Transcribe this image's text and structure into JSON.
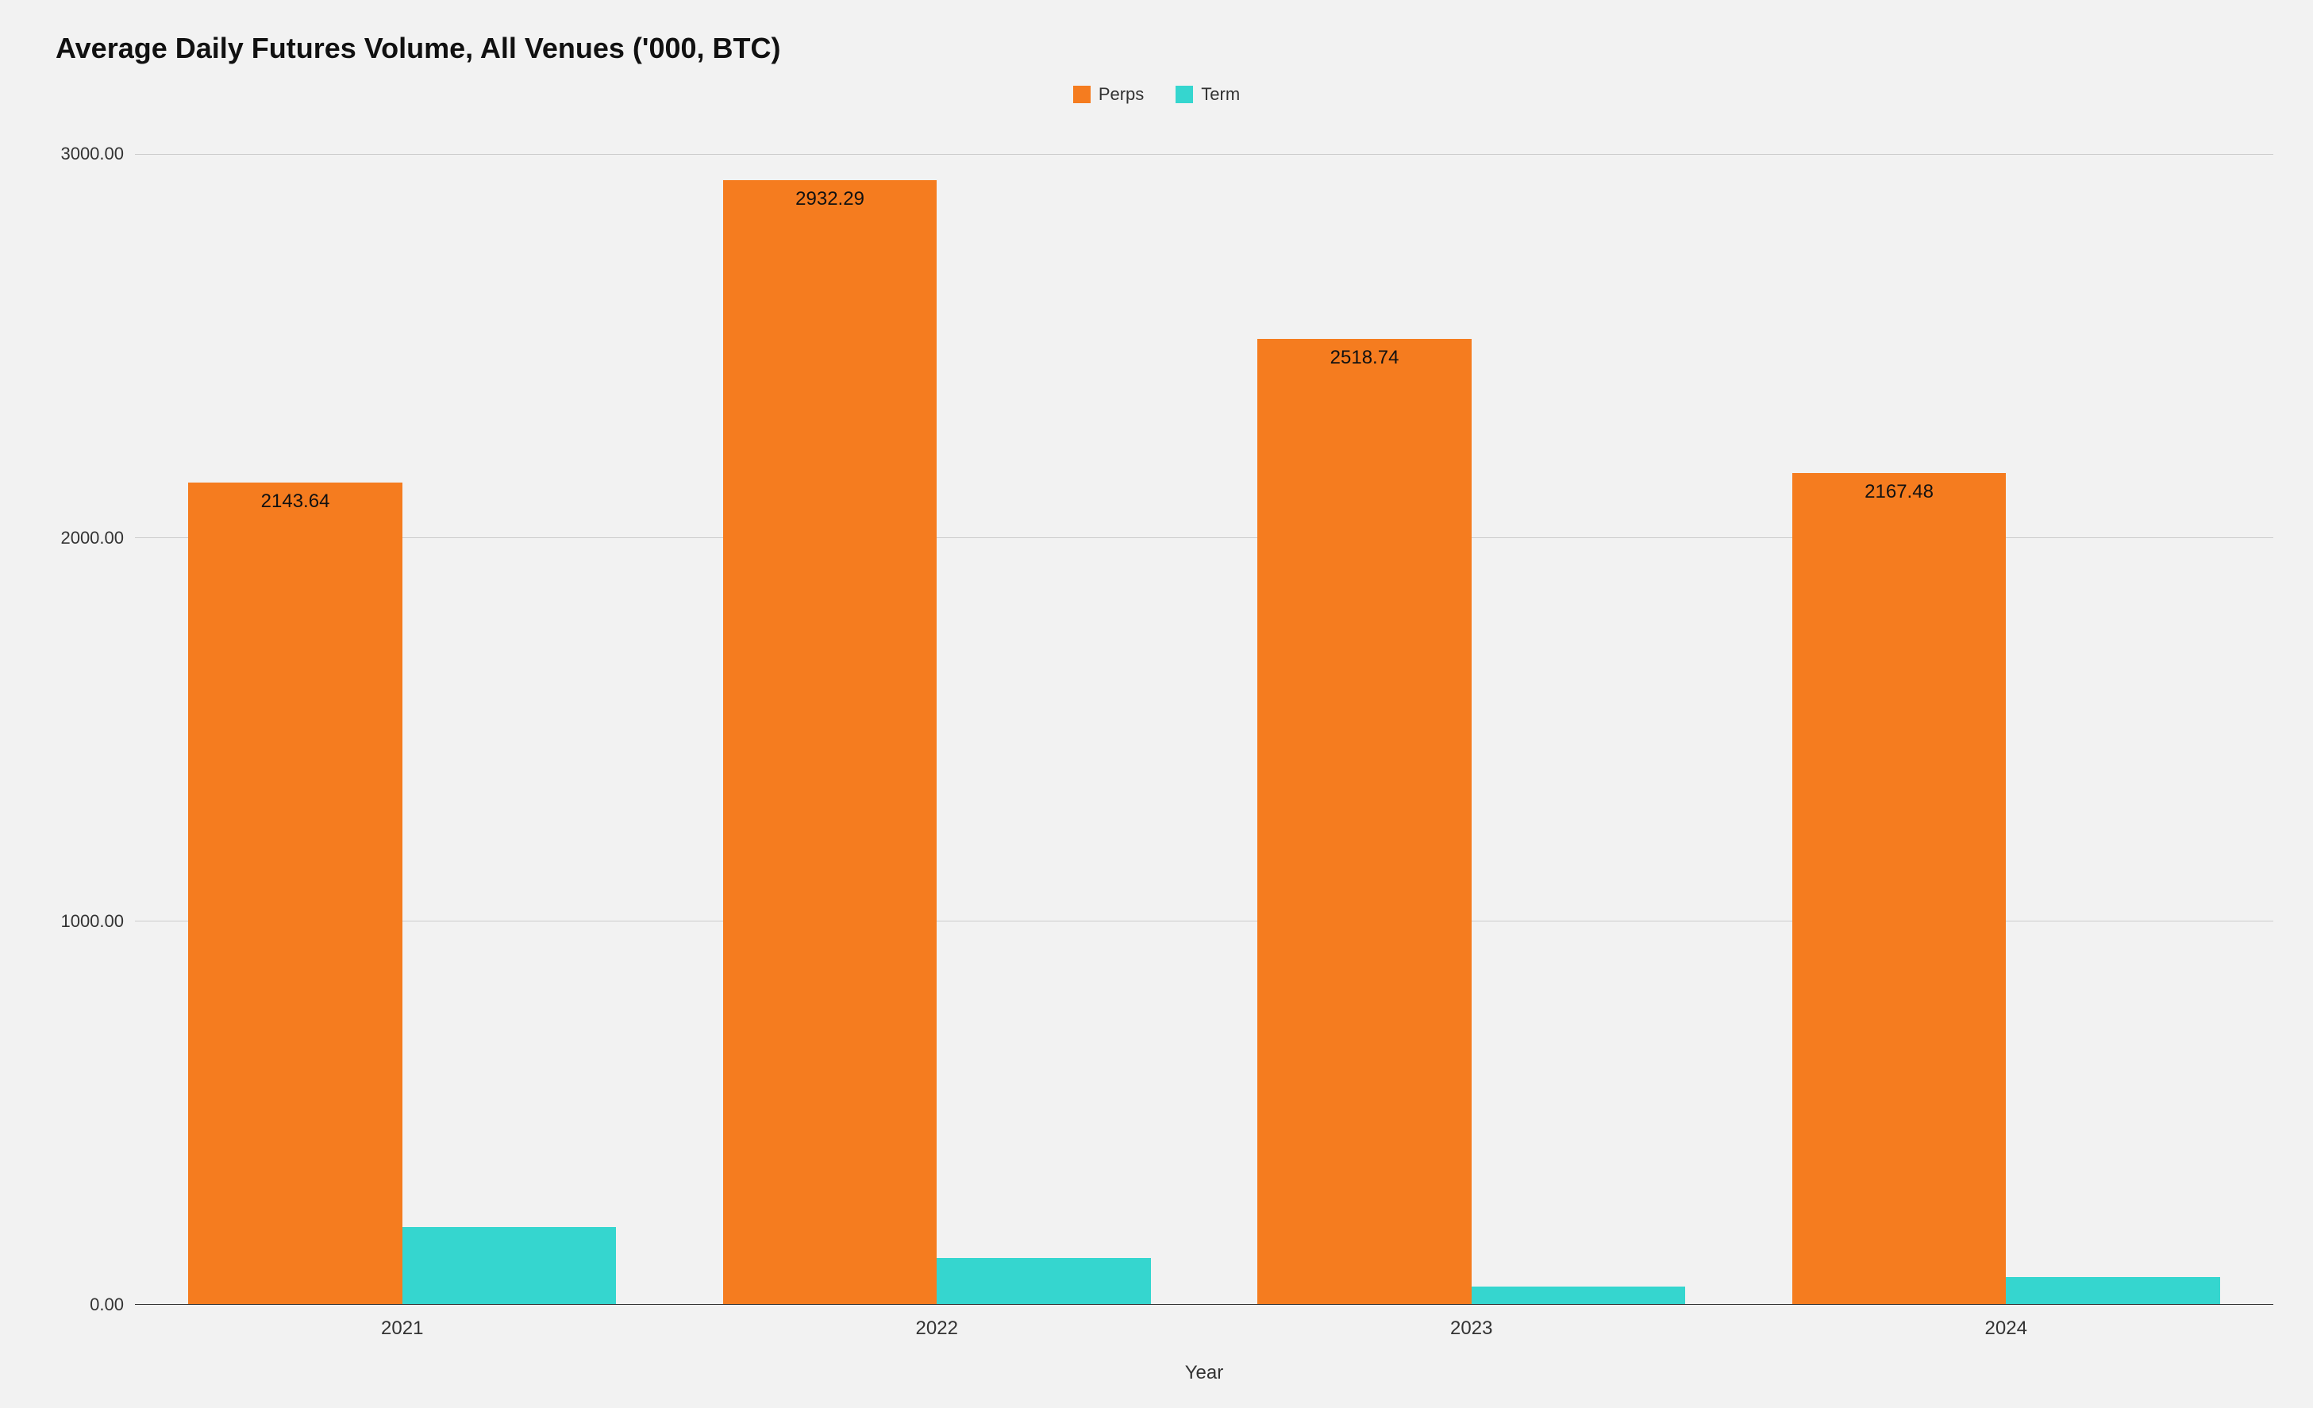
{
  "chart": {
    "type": "bar",
    "title": "Average Daily Futures Volume, All Venues ('000, BTC)",
    "title_fontsize": 36,
    "x_title": "Year",
    "background_color": "#f2f2f2",
    "grid_color": "#cccccc",
    "axis_color": "#333333",
    "label_fontsize": 24,
    "tick_fontsize": 22,
    "legend": {
      "position": "top-center",
      "items": [
        {
          "label": "Perps",
          "color": "#f57c1f"
        },
        {
          "label": "Term",
          "color": "#35d6cf"
        }
      ]
    },
    "y_axis": {
      "min": 0,
      "max": 3100,
      "ticks": [
        0,
        1000,
        2000,
        3000
      ],
      "tick_labels": [
        "0.00",
        "1000.00",
        "2000.00",
        "3000.00"
      ]
    },
    "categories": [
      "2021",
      "2022",
      "2023",
      "2024"
    ],
    "series": [
      {
        "name": "Perps",
        "color": "#f57c1f",
        "values": [
          2143.64,
          2932.29,
          2518.74,
          2167.48
        ],
        "value_labels": [
          "2143.64",
          "2932.29",
          "2518.74",
          "2167.48"
        ],
        "show_labels": true,
        "bar_width_pct": 40
      },
      {
        "name": "Term",
        "color": "#35d6cf",
        "values": [
          200,
          120,
          45,
          70
        ],
        "value_labels": [
          "",
          "",
          "",
          ""
        ],
        "show_labels": false,
        "bar_width_pct": 40
      }
    ]
  }
}
